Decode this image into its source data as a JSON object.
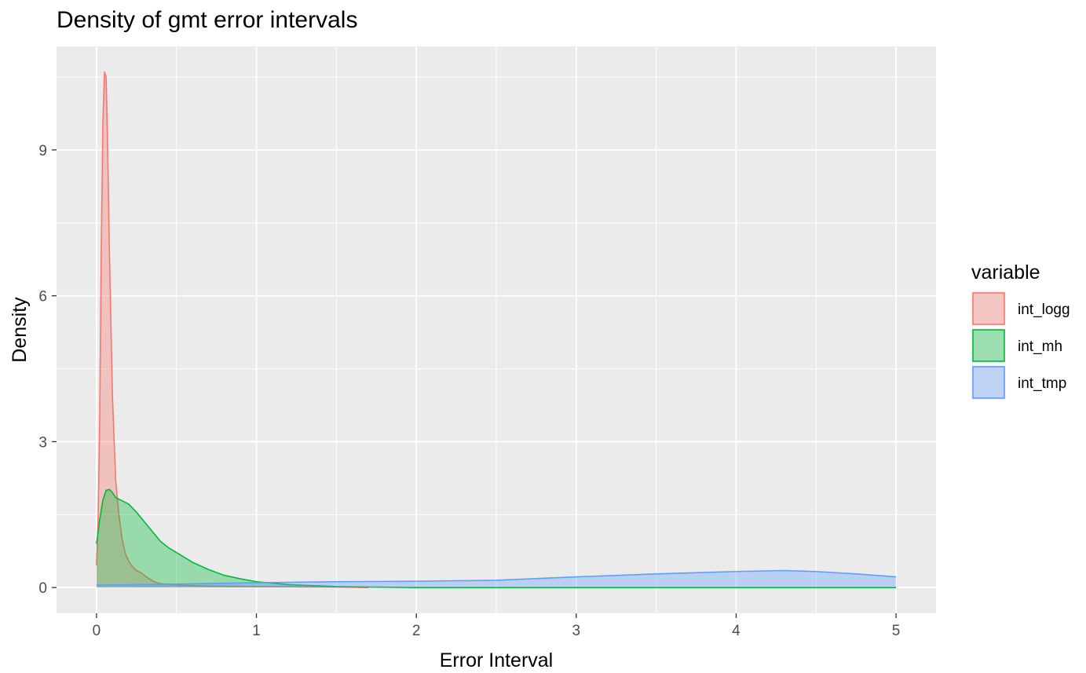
{
  "chart_data": {
    "type": "area",
    "title": "Density of gmt error intervals",
    "xlabel": "Error Interval",
    "ylabel": "Density",
    "xlim": [
      -0.25,
      5.25
    ],
    "ylim": [
      -0.53,
      11.13
    ],
    "x_ticks": [
      0,
      1,
      2,
      3,
      4,
      5
    ],
    "x_tick_labels": [
      "0",
      "1",
      "2",
      "3",
      "4",
      "5"
    ],
    "y_ticks": [
      0,
      3,
      6,
      9
    ],
    "y_tick_labels": [
      "0",
      "3",
      "6",
      "9"
    ],
    "grid": true,
    "background": "#ebebeb",
    "legend": {
      "title": "variable",
      "position": "right"
    },
    "series": [
      {
        "name": "int_logg",
        "line_color": "#f8766d",
        "fill_color": "#f8766d",
        "x": [
          0.0,
          0.01,
          0.02,
          0.03,
          0.04,
          0.05,
          0.06,
          0.07,
          0.08,
          0.1,
          0.12,
          0.14,
          0.16,
          0.18,
          0.2,
          0.22,
          0.25,
          0.28,
          0.32,
          0.36,
          0.4,
          0.5,
          0.7,
          1.0,
          1.5,
          1.7
        ],
        "y": [
          0.45,
          1.4,
          3.5,
          7.0,
          9.6,
          10.6,
          10.5,
          9.0,
          7.0,
          3.9,
          2.2,
          1.5,
          1.0,
          0.7,
          0.55,
          0.45,
          0.35,
          0.3,
          0.2,
          0.12,
          0.08,
          0.05,
          0.03,
          0.02,
          0.01,
          0.0
        ]
      },
      {
        "name": "int_mh",
        "line_color": "#00ba38",
        "fill_color": "#00ba38",
        "x": [
          0.0,
          0.02,
          0.04,
          0.06,
          0.08,
          0.1,
          0.12,
          0.15,
          0.2,
          0.25,
          0.3,
          0.35,
          0.4,
          0.45,
          0.5,
          0.6,
          0.7,
          0.8,
          0.9,
          1.0,
          1.2,
          1.5,
          1.7,
          2.0,
          3.0,
          4.0,
          5.0
        ],
        "y": [
          0.9,
          1.4,
          1.8,
          2.0,
          2.02,
          1.95,
          1.85,
          1.8,
          1.72,
          1.55,
          1.35,
          1.15,
          0.95,
          0.82,
          0.72,
          0.52,
          0.37,
          0.25,
          0.18,
          0.12,
          0.06,
          0.02,
          0.01,
          0.0,
          0.0,
          0.0,
          0.0
        ]
      },
      {
        "name": "int_tmp",
        "line_color": "#619cff",
        "fill_color": "#619cff",
        "x": [
          0.0,
          0.5,
          1.0,
          1.5,
          2.0,
          2.5,
          3.0,
          3.5,
          4.0,
          4.3,
          4.5,
          4.75,
          5.0
        ],
        "y": [
          0.05,
          0.07,
          0.1,
          0.12,
          0.13,
          0.15,
          0.22,
          0.28,
          0.33,
          0.35,
          0.33,
          0.28,
          0.22
        ]
      }
    ]
  }
}
